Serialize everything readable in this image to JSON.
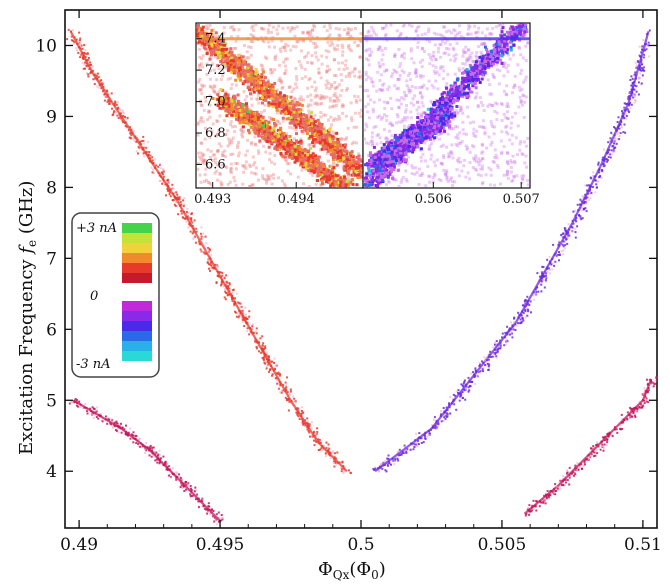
{
  "chart_data": {
    "type": "scatter",
    "xlabel": "Φ_Qx (Φ_0)",
    "xlabel_main": "Φ",
    "xlabel_sub": "Qx",
    "xlabel_open": "(Φ",
    "xlabel_sub2": "0",
    "xlabel_close": ")",
    "ylabel_main": "Excitation Frequency  ",
    "ylabel_f": "f",
    "ylabel_sub": "e",
    "ylabel_unit": " (GHz)",
    "xlim": [
      0.4895,
      0.5105
    ],
    "ylim": [
      3.2,
      10.5
    ],
    "xticks": [
      {
        "v": 0.49,
        "label": "0.49"
      },
      {
        "v": 0.495,
        "label": "0.495"
      },
      {
        "v": 0.5,
        "label": "0.5"
      },
      {
        "v": 0.505,
        "label": "0.505"
      },
      {
        "v": 0.51,
        "label": "0.51"
      }
    ],
    "yticks": [
      {
        "v": 4,
        "label": "4"
      },
      {
        "v": 5,
        "label": "5"
      },
      {
        "v": 6,
        "label": "6"
      },
      {
        "v": 7,
        "label": "7"
      },
      {
        "v": 8,
        "label": "8"
      },
      {
        "v": 9,
        "label": "9"
      },
      {
        "v": 10,
        "label": "10"
      }
    ],
    "series": [
      {
        "color": "#e83a2a",
        "points": [
          [
            0.4897,
            10.2
          ],
          [
            0.4905,
            9.6
          ],
          [
            0.4915,
            9.0
          ],
          [
            0.4925,
            8.4
          ],
          [
            0.4935,
            7.8
          ],
          [
            0.4945,
            7.1
          ],
          [
            0.4955,
            6.4
          ],
          [
            0.4965,
            5.7
          ],
          [
            0.4975,
            5.0
          ],
          [
            0.4985,
            4.4
          ],
          [
            0.4995,
            4.0
          ]
        ]
      },
      {
        "color": "#6a2ae0",
        "points": [
          [
            0.5005,
            4.0
          ],
          [
            0.5015,
            4.3
          ],
          [
            0.5025,
            4.6
          ],
          [
            0.5035,
            5.1
          ],
          [
            0.5045,
            5.6
          ],
          [
            0.5055,
            6.1
          ],
          [
            0.5065,
            6.8
          ],
          [
            0.5075,
            7.5
          ],
          [
            0.5085,
            8.3
          ],
          [
            0.5095,
            9.2
          ],
          [
            0.5102,
            10.2
          ]
        ]
      },
      {
        "color": "#c2185b",
        "points": [
          [
            0.4898,
            5.0
          ],
          [
            0.4915,
            4.6
          ],
          [
            0.4925,
            4.3
          ],
          [
            0.4935,
            3.9
          ],
          [
            0.4945,
            3.5
          ],
          [
            0.495,
            3.3
          ]
        ]
      },
      {
        "color": "#c2185b",
        "points": [
          [
            0.5058,
            3.4
          ],
          [
            0.507,
            3.8
          ],
          [
            0.508,
            4.2
          ],
          [
            0.509,
            4.6
          ],
          [
            0.51,
            5.0
          ],
          [
            0.5103,
            5.3
          ]
        ]
      }
    ],
    "inset_left": {
      "xlim": [
        0.4928,
        0.4948
      ],
      "ylim": [
        6.45,
        7.5
      ],
      "xticks": [
        {
          "v": 0.493,
          "label": "0.493"
        },
        {
          "v": 0.494,
          "label": "0.494"
        }
      ],
      "yticks": [
        {
          "v": 6.6,
          "label": "6.6"
        },
        {
          "v": 6.8,
          "label": "6.8"
        },
        {
          "v": 7.0,
          "label": "7.0"
        },
        {
          "v": 7.2,
          "label": "7.2"
        },
        {
          "v": 7.4,
          "label": "7.4"
        }
      ]
    },
    "inset_right": {
      "xlim": [
        0.5052,
        0.5071
      ],
      "ylim": [
        6.45,
        7.5
      ],
      "xticks": [
        {
          "v": 0.506,
          "label": "0.506"
        },
        {
          "v": 0.507,
          "label": "0.507"
        }
      ]
    },
    "colorbar": {
      "labels": [
        {
          "key": "top",
          "text": "+3 nA"
        },
        {
          "key": "mid",
          "text": "0"
        },
        {
          "key": "bot",
          "text": "-3 nA"
        }
      ],
      "colors_top": [
        "#44d34a",
        "#c4e23a",
        "#f2d23a",
        "#f08a2a",
        "#e83a2a",
        "#c41a2a"
      ],
      "colors_bot": [
        "#c02ad8",
        "#8a2ae8",
        "#4a2ae8",
        "#2a6ae8",
        "#2ab0e8",
        "#2ad8d8"
      ]
    }
  }
}
